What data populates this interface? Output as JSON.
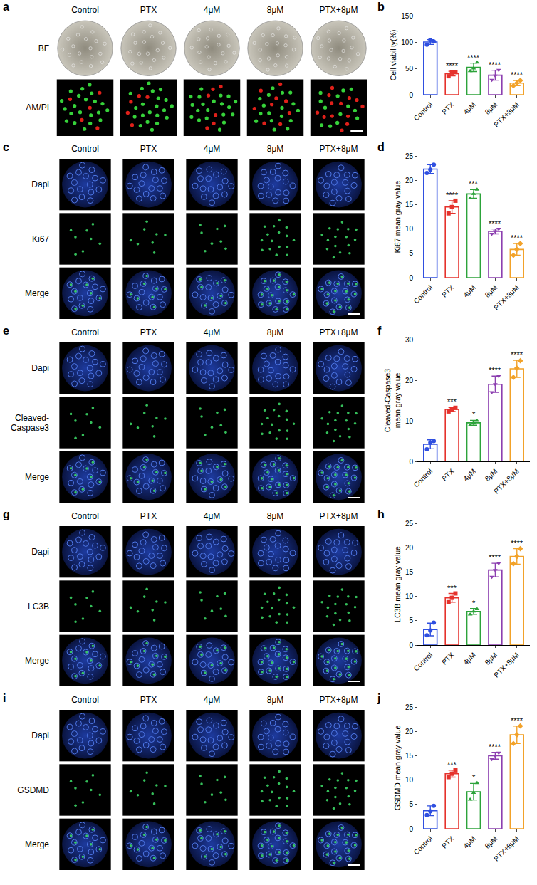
{
  "image_panels": [
    {
      "label": "a",
      "columns": [
        "Control",
        "PTX",
        "4μM",
        "8μM",
        "PTX+8μM"
      ],
      "rows": [
        "BF",
        "AM/PI"
      ]
    },
    {
      "label": "c",
      "columns": [
        "Control",
        "PTX",
        "4μM",
        "8μM",
        "PTX+8μM"
      ],
      "rows": [
        "Dapi",
        "Ki67",
        "Merge"
      ]
    },
    {
      "label": "e",
      "columns": [
        "Control",
        "PTX",
        "4μM",
        "8μM",
        "PTX+8μM"
      ],
      "rows": [
        "Dapi",
        "Cleaved-Caspase3",
        "Merge"
      ]
    },
    {
      "label": "g",
      "columns": [
        "Control",
        "PTX",
        "4μM",
        "8μM",
        "PTX+8μM"
      ],
      "rows": [
        "Dapi",
        "LC3B",
        "Merge"
      ]
    },
    {
      "label": "i",
      "columns": [
        "Control",
        "PTX",
        "4μM",
        "8μM",
        "PTX+8μM"
      ],
      "rows": [
        "Dapi",
        "GSDMD",
        "Merge"
      ]
    }
  ],
  "chart_data": [
    {
      "label": "b",
      "type": "bar",
      "y_label": "Cell viability(%)",
      "categories": [
        "Control",
        "PTX",
        "4μM",
        "8μM",
        "PTX+8μM"
      ],
      "values": [
        100,
        40,
        52,
        37,
        22
      ],
      "errors": [
        4.5,
        4.4,
        8,
        9.5,
        5
      ],
      "points": [
        [
          95,
          104,
          101
        ],
        [
          35,
          42,
          43
        ],
        [
          45,
          50,
          61
        ],
        [
          28,
          36,
          47
        ],
        [
          17,
          22,
          27
        ]
      ],
      "significance": [
        null,
        "****",
        "****",
        "****",
        "****"
      ],
      "colors": [
        "#2f4fe0",
        "#e5322c",
        "#2ca33a",
        "#8c3fb0",
        "#f2a229"
      ],
      "marker": [
        "circle",
        "square",
        "triangle-up",
        "triangle-down",
        "diamond"
      ],
      "ylim": [
        0,
        150
      ],
      "yticks": [
        0,
        50,
        100,
        150
      ],
      "grid": false
    },
    {
      "label": "d",
      "type": "bar",
      "y_label": "Ki67 mean gray value",
      "categories": [
        "Control",
        "PTX",
        "4μM",
        "8μM",
        "PTX+8μM"
      ],
      "values": [
        22.3,
        14.5,
        17.2,
        9.5,
        5.8
      ],
      "errors": [
        0.9,
        1.3,
        0.9,
        0.5,
        1.2
      ],
      "points": [
        [
          21.5,
          22.2,
          23.2
        ],
        [
          13.2,
          14.5,
          15.8
        ],
        [
          16.3,
          17.2,
          18.1
        ],
        [
          9,
          9.5,
          10
        ],
        [
          4.6,
          5.8,
          7
        ]
      ],
      "significance": [
        null,
        "****",
        "***",
        "****",
        "****"
      ],
      "colors": [
        "#2f4fe0",
        "#e5322c",
        "#2ca33a",
        "#8c3fb0",
        "#f2a229"
      ],
      "marker": [
        "circle",
        "square",
        "triangle-up",
        "triangle-down",
        "diamond"
      ],
      "ylim": [
        0,
        25
      ],
      "yticks": [
        0,
        5,
        10,
        15,
        20,
        25
      ],
      "grid": false
    },
    {
      "label": "f",
      "type": "bar",
      "y_label": "Cleaved-Caspase3 mean gray value",
      "categories": [
        "Control",
        "PTX",
        "4μM",
        "8μM",
        "PTX+8μM"
      ],
      "values": [
        4.2,
        12.8,
        9.5,
        19,
        22.8
      ],
      "errors": [
        1.1,
        0.5,
        0.6,
        2,
        2.1
      ],
      "points": [
        [
          3,
          4.6,
          5
        ],
        [
          12.3,
          12.8,
          13.2
        ],
        [
          8.9,
          9.5,
          10
        ],
        [
          17,
          19,
          21
        ],
        [
          20.7,
          23,
          24.8
        ]
      ],
      "significance": [
        null,
        "***",
        "*",
        "****",
        "****"
      ],
      "colors": [
        "#2f4fe0",
        "#e5322c",
        "#2ca33a",
        "#8c3fb0",
        "#f2a229"
      ],
      "marker": [
        "circle",
        "square",
        "triangle-up",
        "triangle-down",
        "diamond"
      ],
      "ylim": [
        0,
        30
      ],
      "yticks": [
        0,
        10,
        20,
        30
      ],
      "grid": false
    },
    {
      "label": "h",
      "type": "bar",
      "y_label": "LC3B mean gray value",
      "categories": [
        "Control",
        "PTX",
        "4μM",
        "8μM",
        "PTX+8μM"
      ],
      "values": [
        3.2,
        9.7,
        6.9,
        15.4,
        18.2
      ],
      "errors": [
        1.3,
        0.9,
        0.6,
        1.4,
        1.6
      ],
      "points": [
        [
          2,
          3,
          4.6
        ],
        [
          8.8,
          9.7,
          10.6
        ],
        [
          6.3,
          6.9,
          7.4
        ],
        [
          14,
          15.4,
          16.8
        ],
        [
          16.7,
          18.2,
          19.8
        ]
      ],
      "significance": [
        null,
        "***",
        "*",
        "****",
        "****"
      ],
      "colors": [
        "#2f4fe0",
        "#e5322c",
        "#2ca33a",
        "#8c3fb0",
        "#f2a229"
      ],
      "marker": [
        "circle",
        "square",
        "triangle-up",
        "triangle-down",
        "diamond"
      ],
      "ylim": [
        0,
        25
      ],
      "yticks": [
        0,
        5,
        10,
        15,
        20,
        25
      ],
      "grid": false
    },
    {
      "label": "j",
      "type": "bar",
      "y_label": "GSDMD mean gray value",
      "categories": [
        "Control",
        "PTX",
        "4μM",
        "8μM",
        "PTX+8μM"
      ],
      "values": [
        3.7,
        11.3,
        7.6,
        15,
        19.3
      ],
      "errors": [
        1,
        0.7,
        1.7,
        0.7,
        1.8
      ],
      "points": [
        [
          2.8,
          3.6,
          4.7
        ],
        [
          10.6,
          11.3,
          12
        ],
        [
          6,
          7.4,
          9.4
        ],
        [
          14.3,
          15,
          15.6
        ],
        [
          17.5,
          19.3,
          21.1
        ]
      ],
      "significance": [
        null,
        "***",
        "*",
        "****",
        "****"
      ],
      "colors": [
        "#2f4fe0",
        "#e5322c",
        "#2ca33a",
        "#8c3fb0",
        "#f2a229"
      ],
      "marker": [
        "circle",
        "square",
        "triangle-up",
        "triangle-down",
        "diamond"
      ],
      "ylim": [
        0,
        25
      ],
      "yticks": [
        0,
        5,
        10,
        15,
        20,
        25
      ],
      "grid": false
    }
  ]
}
